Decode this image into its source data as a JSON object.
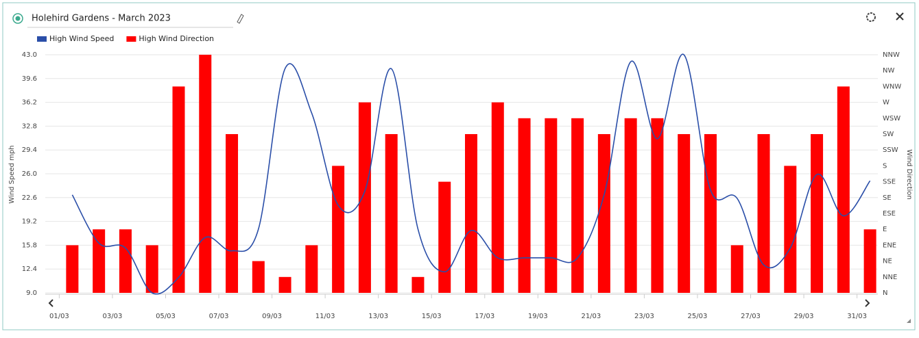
{
  "header": {
    "title": "Holehird Gardens - March 2023"
  },
  "chart_data": {
    "type": "combo",
    "categories": [
      "01/03",
      null,
      "03/03",
      null,
      "05/03",
      null,
      "07/03",
      null,
      "09/03",
      null,
      "11/03",
      null,
      "13/03",
      null,
      "15/03",
      null,
      "17/03",
      null,
      "19/03",
      null,
      "21/03",
      null,
      "23/03",
      null,
      "25/03",
      null,
      "27/03",
      null,
      "29/03",
      null,
      "31/03"
    ],
    "y_label": "Wind Speed mph",
    "y2_label": "Wind Direction",
    "ylim": [
      9,
      43
    ],
    "yticks": [
      {
        "value": 9,
        "label": "9.0"
      },
      12.4,
      15.8,
      19.2,
      22.6,
      {
        "value": 26,
        "label": "26.0"
      },
      29.4,
      32.8,
      36.2,
      39.6,
      {
        "value": 43,
        "label": "43.0"
      }
    ],
    "y2lim": [
      0,
      337.5
    ],
    "y2ticks": [
      {
        "value": 0,
        "label": "N"
      },
      {
        "value": 22.5,
        "label": "NNE"
      },
      {
        "value": 45,
        "label": "NE"
      },
      {
        "value": 67.5,
        "label": "ENE"
      },
      {
        "value": 90,
        "label": "E"
      },
      {
        "value": 112.5,
        "label": "ESE"
      },
      {
        "value": 135,
        "label": "SE"
      },
      {
        "value": 157.5,
        "label": "SSE"
      },
      {
        "value": 180,
        "label": "S"
      },
      {
        "value": 202.5,
        "label": "SSW"
      },
      {
        "value": 225,
        "label": "SW"
      },
      {
        "value": 247.5,
        "label": "WSW"
      },
      {
        "value": 270,
        "label": "W"
      },
      {
        "value": 292.5,
        "label": "WNW"
      },
      {
        "value": 315,
        "label": "NW"
      },
      {
        "value": 337.5,
        "label": "NNW"
      }
    ],
    "grid": true,
    "series": [
      {
        "name": "High Wind Speed",
        "type": "line",
        "color": "#2a4ea8",
        "values": [
          23.0,
          16.1,
          15.4,
          9.0,
          11.2,
          16.9,
          15.0,
          18.1,
          41.0,
          34.7,
          21.5,
          23.5,
          41.0,
          18.1,
          12.0,
          17.9,
          14.0,
          14.0,
          14.0,
          14.0,
          23.0,
          42.0,
          31.0,
          43.0,
          23.7,
          22.5,
          13.0,
          15.4,
          25.9,
          20.0,
          25.0
        ]
      },
      {
        "name": "High Wind Direction",
        "type": "bar",
        "axis": "y2",
        "color": "#ff0000",
        "values": [
          67.5,
          90,
          90,
          67.5,
          292.5,
          337.5,
          225,
          45,
          22.5,
          67.5,
          180,
          270,
          225,
          22.5,
          157.5,
          225,
          270,
          247.5,
          247.5,
          247.5,
          225,
          247.5,
          247.5,
          225,
          225,
          67.5,
          225,
          180,
          225,
          292.5,
          90
        ]
      }
    ]
  }
}
